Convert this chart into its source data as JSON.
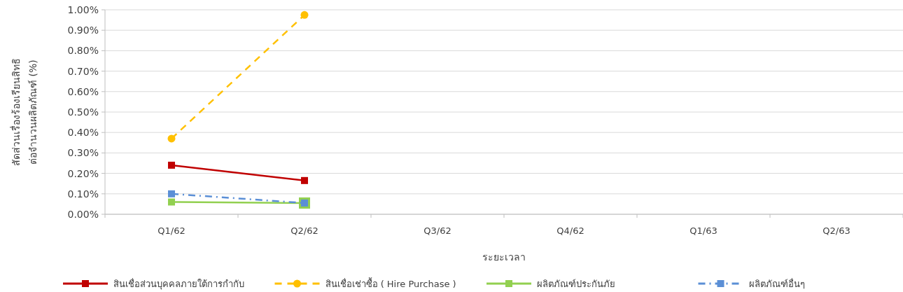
{
  "chart_data": {
    "type": "line",
    "xlabel": "ระยะเวลา",
    "ylabel": "สัดส่วนเรื่องร้องเรียนสิทธิ\nต่อจำนวนผลิตภัณฑ์ (%)",
    "categories": [
      "Q1/62",
      "Q2/62",
      "Q3/62",
      "Q4/62",
      "Q1/63",
      "Q2/63"
    ],
    "series": [
      {
        "name": "สินเชื่อส่วนบุคคลภายใต้การกำกับ",
        "color": "#c00000",
        "values": [
          0.24,
          0.165,
          null,
          null,
          null,
          null
        ],
        "marker": "square",
        "line_style": "solid"
      },
      {
        "name": "สินเชื่อเช่าซื้อ ( Hire Purchase )",
        "color": "#ffc000",
        "values": [
          0.37,
          0.975,
          null,
          null,
          null,
          null
        ],
        "marker": "circle",
        "line_style": "dashed"
      },
      {
        "name": "ผลิตภัณฑ์ประกันภัย",
        "color": "#92d050",
        "values": [
          0.06,
          0.055,
          null,
          null,
          null,
          null
        ],
        "marker": "square",
        "line_style": "solid"
      },
      {
        "name": "ผลิตภัณฑ์อื่นๆ",
        "color": "#5b8fd6",
        "values": [
          0.1,
          0.055,
          null,
          null,
          null,
          null
        ],
        "marker": "square",
        "line_style": "dashdot"
      }
    ],
    "ylim": [
      0,
      1
    ],
    "yticks": [
      {
        "value": 0,
        "label": "0.00%"
      },
      {
        "value": 0.1,
        "label": "0.10%"
      },
      {
        "value": 0.2,
        "label": "0.20%"
      },
      {
        "value": 0.3,
        "label": "0.30%"
      },
      {
        "value": 0.4,
        "label": "0.40%"
      },
      {
        "value": 0.5,
        "label": "0.50%"
      },
      {
        "value": 0.6,
        "label": "0.60%"
      },
      {
        "value": 0.7,
        "label": "0.70%"
      },
      {
        "value": 0.8,
        "label": "0.80%"
      },
      {
        "value": 0.9,
        "label": "0.90%"
      },
      {
        "value": 1,
        "label": "1.00%"
      }
    ],
    "grid": "y",
    "legend": "bottom"
  }
}
